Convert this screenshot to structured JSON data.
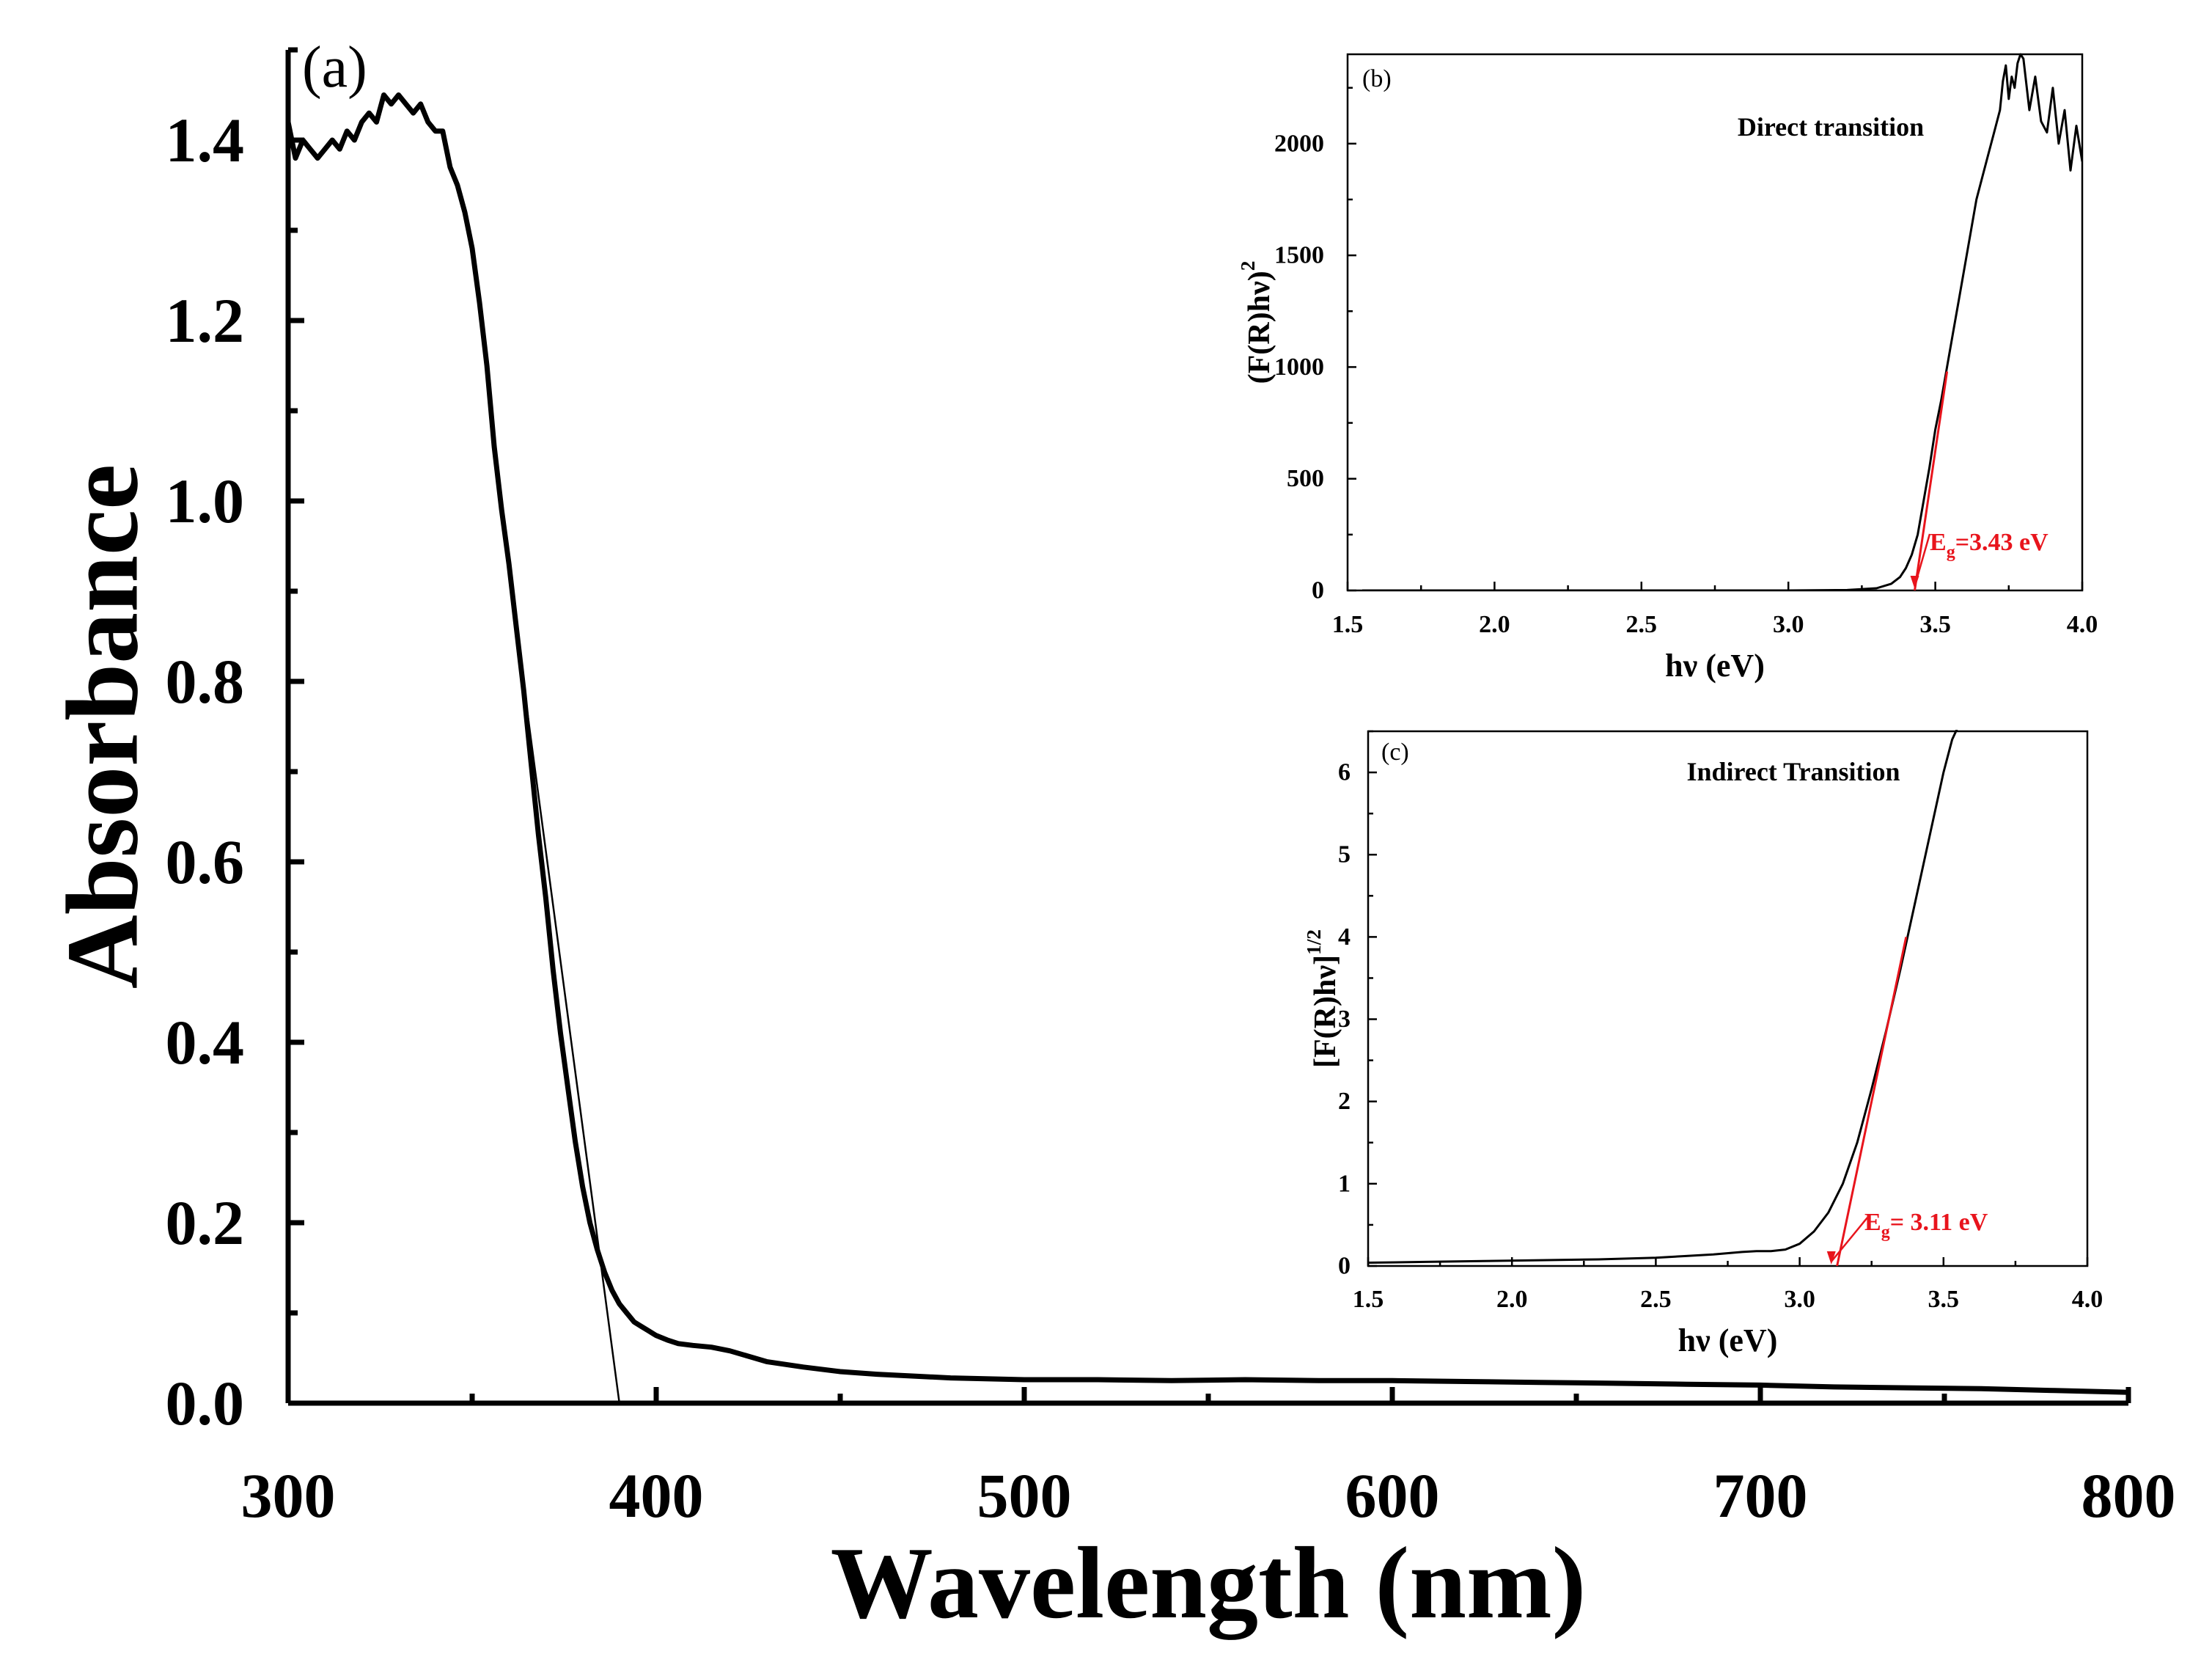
{
  "chart_data": [
    {
      "id": "a",
      "type": "line",
      "panel_label": "(a)",
      "title": "",
      "xlabel": "Wavelength (nm)",
      "ylabel": "Absorbance",
      "xlim": [
        300,
        800
      ],
      "ylim": [
        0,
        1.5
      ],
      "xticks": [
        300,
        400,
        500,
        600,
        700,
        800
      ],
      "xtick_labels": [
        "300",
        "400",
        "500",
        "600",
        "700",
        "800"
      ],
      "yticks": [
        0.0,
        0.2,
        0.4,
        0.6,
        0.8,
        1.0,
        1.2,
        1.4
      ],
      "ytick_labels": [
        "0.0",
        "0.2",
        "0.4",
        "0.6",
        "0.8",
        "1.0",
        "1.2",
        "1.4"
      ],
      "series": [
        {
          "name": "Absorbance",
          "color": "#000000",
          "x": [
            300,
            302,
            304,
            306,
            308,
            310,
            312,
            314,
            316,
            318,
            320,
            322,
            324,
            326,
            328,
            330,
            332,
            334,
            336,
            338,
            340,
            342,
            344,
            346,
            348,
            350,
            352,
            354,
            356,
            358,
            360,
            362,
            364,
            366,
            368,
            370,
            372,
            374,
            376,
            378,
            380,
            382,
            384,
            386,
            388,
            390,
            392,
            394,
            396,
            398,
            400,
            403,
            406,
            410,
            415,
            420,
            425,
            430,
            440,
            450,
            460,
            470,
            480,
            500,
            520,
            540,
            560,
            580,
            600,
            620,
            640,
            660,
            680,
            700,
            720,
            740,
            760,
            780,
            790,
            800
          ],
          "y": [
            1.42,
            1.38,
            1.4,
            1.39,
            1.38,
            1.39,
            1.4,
            1.39,
            1.41,
            1.4,
            1.42,
            1.43,
            1.42,
            1.45,
            1.44,
            1.45,
            1.44,
            1.43,
            1.44,
            1.42,
            1.41,
            1.41,
            1.37,
            1.35,
            1.32,
            1.28,
            1.22,
            1.15,
            1.06,
            0.99,
            0.93,
            0.86,
            0.79,
            0.71,
            0.63,
            0.56,
            0.48,
            0.41,
            0.35,
            0.29,
            0.24,
            0.2,
            0.17,
            0.145,
            0.125,
            0.11,
            0.1,
            0.09,
            0.085,
            0.08,
            0.075,
            0.07,
            0.066,
            0.064,
            0.062,
            0.058,
            0.052,
            0.046,
            0.04,
            0.035,
            0.032,
            0.03,
            0.028,
            0.026,
            0.026,
            0.025,
            0.026,
            0.025,
            0.025,
            0.024,
            0.023,
            0.022,
            0.021,
            0.02,
            0.018,
            0.017,
            0.016,
            0.014,
            0.013,
            0.012
          ]
        },
        {
          "name": "tangent",
          "color": "#000000",
          "x": [
            358,
            390
          ],
          "y": [
            0.98,
            0.0
          ]
        }
      ]
    },
    {
      "id": "b",
      "type": "line",
      "panel_label": "(b)",
      "title": "Direct transition",
      "xlabel": "hν (eV)",
      "ylabel_main": "(F(R)hν)",
      "ylabel_sup": "2",
      "xlim": [
        1.5,
        4.0
      ],
      "ylim": [
        0,
        2400
      ],
      "xticks": [
        1.5,
        2.0,
        2.5,
        3.0,
        3.5,
        4.0
      ],
      "xtick_labels": [
        "1.5",
        "2.0",
        "2.5",
        "3.0",
        "3.5",
        "4.0"
      ],
      "yticks": [
        0,
        500,
        1000,
        1500,
        2000
      ],
      "ytick_labels": [
        "0",
        "500",
        "1000",
        "1500",
        "2000"
      ],
      "annotation": {
        "main": "E",
        "sub": "g",
        "rest": "=3.43 eV",
        "color": "#e8141c",
        "eg": 3.43
      },
      "series": [
        {
          "name": "data",
          "color": "#000000",
          "x": [
            1.55,
            2.0,
            2.5,
            3.0,
            3.2,
            3.3,
            3.35,
            3.38,
            3.4,
            3.42,
            3.44,
            3.46,
            3.48,
            3.5,
            3.52,
            3.54,
            3.56,
            3.58,
            3.6,
            3.62,
            3.64,
            3.66,
            3.68,
            3.7,
            3.72,
            3.73,
            3.74,
            3.75,
            3.76,
            3.77,
            3.78,
            3.79,
            3.8,
            3.82,
            3.84,
            3.86,
            3.88,
            3.9,
            3.92,
            3.94,
            3.96,
            3.98,
            4.0
          ],
          "y": [
            0,
            0,
            0,
            0,
            2,
            10,
            30,
            60,
            100,
            160,
            250,
            400,
            550,
            720,
            850,
            1000,
            1150,
            1300,
            1450,
            1600,
            1750,
            1850,
            1950,
            2050,
            2150,
            2280,
            2350,
            2200,
            2300,
            2250,
            2360,
            2400,
            2380,
            2150,
            2300,
            2100,
            2050,
            2250,
            2000,
            2150,
            1880,
            2080,
            1920
          ]
        },
        {
          "name": "tangent",
          "color": "#e8141c",
          "x": [
            3.43,
            3.54
          ],
          "y": [
            0,
            980
          ]
        }
      ]
    },
    {
      "id": "c",
      "type": "line",
      "panel_label": "(c)",
      "title": "Indirect Transition",
      "xlabel": "hν (eV)",
      "ylabel_main": "[F(R)hν]",
      "ylabel_sup": "1/2",
      "xlim": [
        1.5,
        4.0
      ],
      "ylim": [
        0,
        6.5
      ],
      "xticks": [
        1.5,
        2.0,
        2.5,
        3.0,
        3.5,
        4.0
      ],
      "xtick_labels": [
        "1.5",
        "2.0",
        "2.5",
        "3.0",
        "3.5",
        "4.0"
      ],
      "yticks": [
        0,
        1,
        2,
        3,
        4,
        5,
        6
      ],
      "ytick_labels": [
        "0",
        "1",
        "2",
        "3",
        "4",
        "5",
        "6"
      ],
      "annotation": {
        "main": "E",
        "sub": "g",
        "rest": "= 3.11 eV",
        "color": "#e8141c",
        "eg": 3.11
      },
      "series": [
        {
          "name": "data",
          "color": "#000000",
          "x": [
            1.5,
            1.7,
            1.9,
            2.1,
            2.3,
            2.5,
            2.6,
            2.7,
            2.8,
            2.85,
            2.9,
            2.95,
            3.0,
            3.05,
            3.1,
            3.15,
            3.2,
            3.25,
            3.3,
            3.35,
            3.4,
            3.45,
            3.5,
            3.53,
            3.55
          ],
          "y": [
            0.04,
            0.05,
            0.06,
            0.07,
            0.08,
            0.1,
            0.12,
            0.14,
            0.17,
            0.18,
            0.18,
            0.2,
            0.27,
            0.42,
            0.65,
            1.0,
            1.5,
            2.15,
            2.85,
            3.6,
            4.4,
            5.2,
            6.0,
            6.4,
            6.55
          ]
        },
        {
          "name": "tangent",
          "color": "#e8141c",
          "x": [
            3.13,
            3.37
          ],
          "y": [
            0,
            4.0
          ]
        }
      ]
    }
  ]
}
